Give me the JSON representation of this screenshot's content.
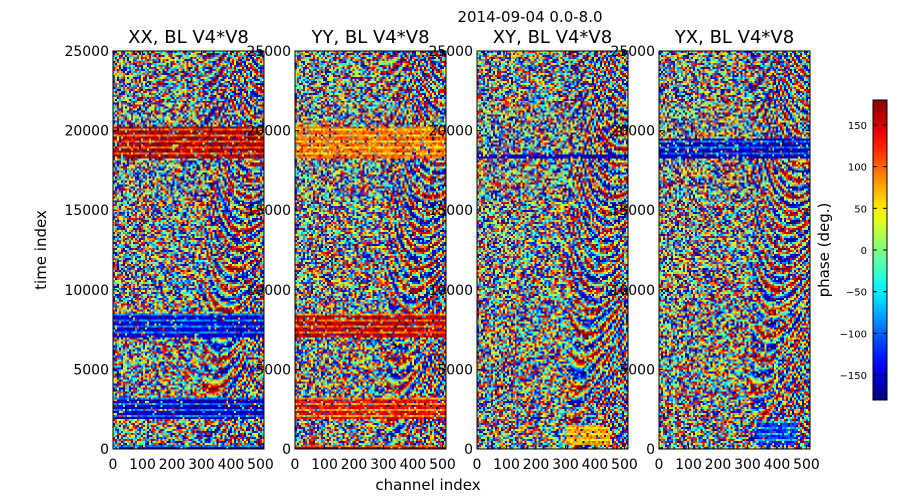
{
  "figure": {
    "suptitle": "2014-09-04 0.0-8.0",
    "xlabel": "channel index",
    "ylabel": "time index",
    "colorbar_label": "phase (deg.)"
  },
  "chart_data": [
    {
      "type": "heatmap",
      "title": "XX, BL V4*V8",
      "xlim": [
        0,
        512
      ],
      "ylim": [
        0,
        25000
      ],
      "xticks": [
        "0",
        "100",
        "200",
        "300",
        "400",
        "500"
      ],
      "yticks": [
        "0",
        "5000",
        "10000",
        "15000",
        "20000",
        "25000"
      ],
      "features": [
        {
          "t0": 18300,
          "t1": 20200,
          "c0": 0,
          "c1": 512,
          "phase": 170,
          "note": "red/blue striped band"
        },
        {
          "t0": 7000,
          "t1": 8500,
          "c0": 0,
          "c1": 512,
          "phase": -150
        },
        {
          "t0": 1900,
          "t1": 3200,
          "c0": 0,
          "c1": 512,
          "phase": -160
        },
        {
          "t0": 0,
          "t1": 300,
          "c0": 0,
          "c1": 512,
          "phase": -150
        }
      ]
    },
    {
      "type": "heatmap",
      "title": "YY, BL V4*V8",
      "xlim": [
        0,
        512
      ],
      "ylim": [
        0,
        25000
      ],
      "xticks": [
        "0",
        "100",
        "200",
        "300",
        "400",
        "500"
      ],
      "yticks": [
        "0",
        "5000",
        "10000",
        "15000",
        "20000",
        "25000"
      ],
      "features": [
        {
          "t0": 18300,
          "t1": 20200,
          "c0": 0,
          "c1": 512,
          "phase": 100
        },
        {
          "t0": 7000,
          "t1": 8500,
          "c0": 0,
          "c1": 512,
          "phase": 160
        },
        {
          "t0": 1900,
          "t1": 3200,
          "c0": 0,
          "c1": 512,
          "phase": 140
        },
        {
          "t0": 0,
          "t1": 300,
          "c0": 0,
          "c1": 512,
          "phase": 170
        }
      ]
    },
    {
      "type": "heatmap",
      "title": "XY, BL V4*V8",
      "xlim": [
        0,
        512
      ],
      "ylim": [
        0,
        25000
      ],
      "xticks": [
        "0",
        "100",
        "200",
        "300",
        "400",
        "500"
      ],
      "yticks": [
        "0",
        "5000",
        "10000",
        "15000",
        "20000",
        "25000"
      ],
      "features": [
        {
          "t0": 18200,
          "t1": 18500,
          "c0": 0,
          "c1": 512,
          "phase": -160
        },
        {
          "t0": 300,
          "t1": 1500,
          "c0": 300,
          "c1": 450,
          "phase": 80
        }
      ]
    },
    {
      "type": "heatmap",
      "title": "YX, BL V4*V8",
      "xlim": [
        0,
        512
      ],
      "ylim": [
        0,
        25000
      ],
      "xticks": [
        "0",
        "100",
        "200",
        "300",
        "400",
        "500"
      ],
      "yticks": [
        "0",
        "5000",
        "10000",
        "15000",
        "20000",
        "25000"
      ],
      "features": [
        {
          "t0": 18300,
          "t1": 19500,
          "c0": 0,
          "c1": 512,
          "phase": -160
        },
        {
          "t0": 300,
          "t1": 1800,
          "c0": 330,
          "c1": 470,
          "phase": -120
        }
      ]
    }
  ],
  "colorbar": {
    "vmin": -180,
    "vmax": 180,
    "ticks": [
      "150",
      "100",
      "50",
      "0",
      "−50",
      "−100",
      "−150"
    ],
    "colormap": "jet"
  }
}
